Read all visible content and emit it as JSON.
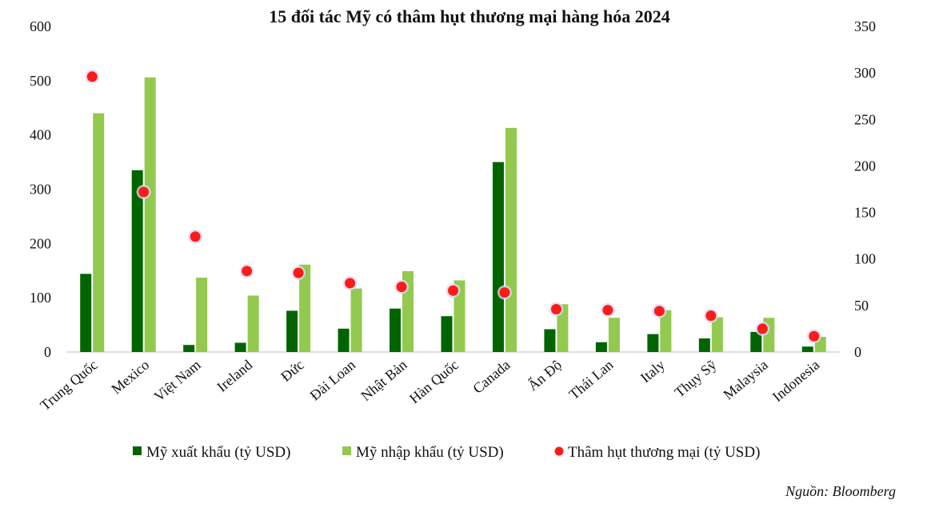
{
  "chart_data": {
    "type": "bar",
    "title": "15 đối tác Mỹ có thâm hụt thương mại hàng hóa 2024",
    "categories": [
      "Trung Quốc",
      "Mexico",
      "Việt Nam",
      "Ireland",
      "Đức",
      "Đài Loan",
      "Nhật Bản",
      "Hàn Quốc",
      "Canada",
      "Ấn Độ",
      "Thái Lan",
      "Italy",
      "Thụy Sỹ",
      "Malaysia",
      "Indonesia"
    ],
    "series": [
      {
        "name": "Mỹ xuất khẩu (tỷ USD)",
        "type": "bar",
        "axis": "left",
        "color": "#006400",
        "values": [
          144,
          335,
          13,
          17,
          76,
          43,
          80,
          66,
          350,
          42,
          18,
          33,
          25,
          37,
          10
        ]
      },
      {
        "name": "Mỹ nhập khẩu (tỷ USD)",
        "type": "bar",
        "axis": "left",
        "color": "#92c94e",
        "values": [
          440,
          506,
          137,
          104,
          161,
          117,
          149,
          132,
          413,
          88,
          63,
          77,
          64,
          63,
          28
        ]
      },
      {
        "name": "Thâm hụt thương mại (tỷ USD)",
        "type": "scatter",
        "axis": "right",
        "color": "#ff1a1a",
        "values": [
          296,
          172,
          124,
          87,
          85,
          74,
          70,
          66,
          64,
          46,
          45,
          44,
          39,
          25,
          17
        ]
      }
    ],
    "y_left": {
      "min": 0,
      "max": 600,
      "ticks": [
        "0",
        "100",
        "200",
        "300",
        "400",
        "500",
        "600"
      ]
    },
    "y_right": {
      "min": 0,
      "max": 350,
      "ticks": [
        "0",
        "50",
        "100",
        "150",
        "200",
        "250",
        "300",
        "350"
      ]
    },
    "grid": false,
    "legend": "bottom"
  },
  "source": "Nguồn: Bloomberg"
}
